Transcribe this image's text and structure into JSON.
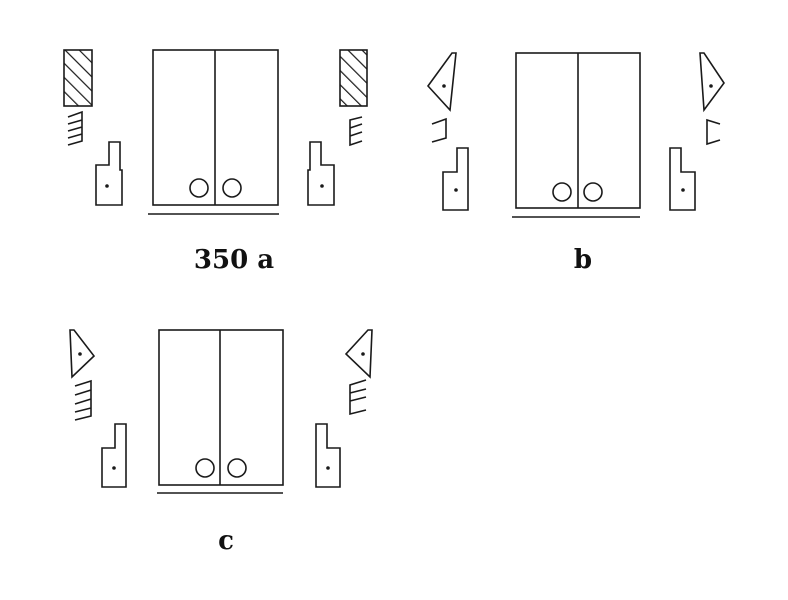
{
  "figures": [
    {
      "caption": "350 a",
      "side_piece": "hatched-rectangle"
    },
    {
      "caption": "b",
      "side_piece": "triangle-tab"
    },
    {
      "caption": "c",
      "side_piece": "triangle-tab"
    }
  ],
  "colors": {
    "line": "#1a1a1a",
    "background": "#ffffff"
  }
}
